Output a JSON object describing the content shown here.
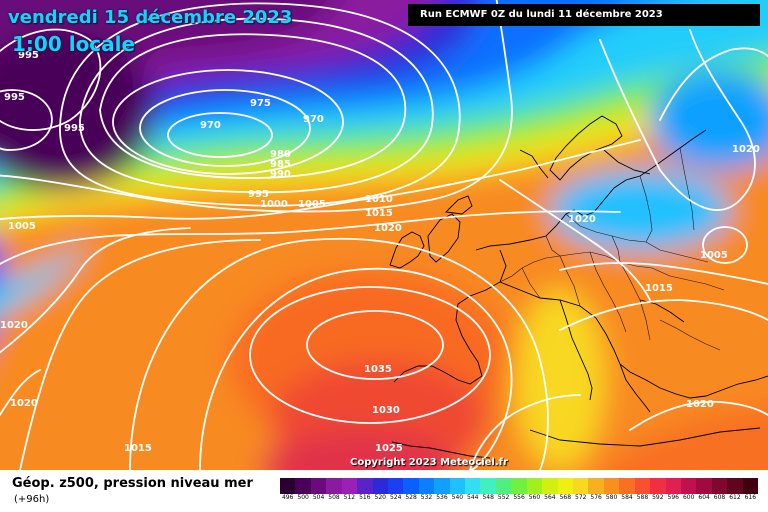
{
  "header": {
    "date": "vendredi 15 décembre 2023",
    "time": "1:00 locale",
    "run": "Run ECMWF 0Z du lundi 11 décembre 2023"
  },
  "footer": {
    "title": "Géop. z500, pression niveau mer",
    "subtitle": "(+96h)",
    "copyright": "Copyright 2023 Meteociel.fr"
  },
  "isobar_labels": [
    {
      "text": "995"
    },
    {
      "text": "995"
    },
    {
      "text": "995"
    },
    {
      "text": "975"
    },
    {
      "text": "970"
    },
    {
      "text": "970"
    },
    {
      "text": "980"
    },
    {
      "text": "985"
    },
    {
      "text": "990"
    },
    {
      "text": "995"
    },
    {
      "text": "1000"
    },
    {
      "text": "1005"
    },
    {
      "text": "1005"
    },
    {
      "text": "1010"
    },
    {
      "text": "1015"
    },
    {
      "text": "1020"
    },
    {
      "text": "1020"
    },
    {
      "text": "1020"
    },
    {
      "text": "1020"
    },
    {
      "text": "1005"
    },
    {
      "text": "1015"
    },
    {
      "text": "1035"
    },
    {
      "text": "1030"
    },
    {
      "text": "1025"
    },
    {
      "text": "1020"
    },
    {
      "text": "1020"
    },
    {
      "text": "1015"
    }
  ],
  "legend": {
    "values": [
      "496",
      "500",
      "504",
      "508",
      "512",
      "516",
      "520",
      "524",
      "528",
      "532",
      "536",
      "540",
      "544",
      "548",
      "552",
      "556",
      "560",
      "564",
      "568",
      "572",
      "576",
      "580",
      "584",
      "588",
      "592",
      "596",
      "600",
      "604",
      "608",
      "612",
      "616"
    ],
    "colors": [
      "#2a0030",
      "#4a0058",
      "#6a0a7c",
      "#8a1aa0",
      "#9a20b8",
      "#5a22c8",
      "#2a2ad8",
      "#1a40f0",
      "#0a60ff",
      "#0a80ff",
      "#10a0ff",
      "#20c0ff",
      "#30e0f0",
      "#40f0c0",
      "#50f080",
      "#70f040",
      "#a0f020",
      "#d0f010",
      "#f0f010",
      "#f8d820",
      "#f8b020",
      "#f89020",
      "#f87020",
      "#f85030",
      "#f03040",
      "#e02050",
      "#c01050",
      "#a00a40",
      "#800830",
      "#600420",
      "#400010"
    ]
  },
  "colors": {
    "title_text": "#17d2ff",
    "run_box_bg": "#000000",
    "isobar": "#ffffff"
  }
}
